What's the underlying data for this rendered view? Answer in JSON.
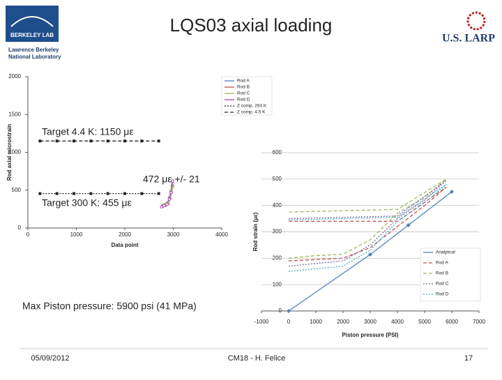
{
  "header": {
    "logo_left": "BERKELEY LAB",
    "logo_left_sub": [
      "Lawrence Berkeley",
      "National Laboratory"
    ],
    "title": "LQS03 axial loading",
    "logo_right": "U.S. LARP"
  },
  "chart_data": [
    {
      "type": "line",
      "ylabel": "Rod axial microstrain",
      "xlabel": "Data point",
      "xlim": [
        0,
        4000
      ],
      "xticks": [
        0,
        1000,
        2000,
        3000,
        4000
      ],
      "ylim": [
        0,
        2000
      ],
      "yticks": [
        0,
        500,
        1000,
        1500,
        2000
      ],
      "grid": false,
      "legend": "upper right",
      "series": [
        {
          "name": "Rod A",
          "color": "#4f81bd",
          "style": "solid",
          "marker": "circle",
          "x": [
            2780,
            2830,
            2880,
            2920,
            2950,
            2980
          ],
          "values": [
            300,
            310,
            330,
            400,
            480,
            560
          ]
        },
        {
          "name": "Rod B",
          "color": "#c0504d",
          "style": "solid",
          "marker": "circle",
          "x": [
            2790,
            2840,
            2890,
            2930,
            2960,
            2985
          ],
          "values": [
            290,
            300,
            320,
            390,
            470,
            550
          ]
        },
        {
          "name": "Rod C",
          "color": "#9bbb59",
          "style": "solid",
          "marker": "circle",
          "x": [
            2800,
            2850,
            2900,
            2935,
            2965,
            2990
          ],
          "values": [
            310,
            320,
            345,
            420,
            500,
            590
          ]
        },
        {
          "name": "Rod D",
          "color": "#b040c0",
          "style": "solid",
          "marker": "circle",
          "x": [
            2760,
            2810,
            2870,
            2920,
            2955,
            2985
          ],
          "values": [
            280,
            295,
            315,
            380,
            470,
            620
          ]
        },
        {
          "name": "Z comp. 293 K",
          "color": "#222222",
          "style": "dotted",
          "marker": "square",
          "x": [
            250,
            600,
            950,
            1300,
            1650,
            2000,
            2350,
            2700
          ],
          "values": [
            455,
            455,
            455,
            455,
            455,
            455,
            455,
            455
          ]
        },
        {
          "name": "Z comp. 4.5 K",
          "color": "#222222",
          "style": "dashed",
          "marker": "square",
          "x": [
            250,
            600,
            950,
            1300,
            1650,
            2000,
            2350,
            2700
          ],
          "values": [
            1150,
            1150,
            1150,
            1150,
            1150,
            1150,
            1150,
            1150
          ]
        }
      ],
      "annotations": [
        "Target 4.4 K: 1150 με",
        "472 με +/- 21",
        "Target 300 K: 455 με"
      ]
    },
    {
      "type": "line",
      "ylabel": "Rod strain (με)",
      "xlabel": "Piston pressure (PSI)",
      "xlim": [
        -1000,
        7000
      ],
      "xticks": [
        -1000,
        0,
        1000,
        2000,
        3000,
        4000,
        5000,
        6000,
        7000
      ],
      "ylim": [
        0,
        600
      ],
      "yticks": [
        0,
        100,
        200,
        300,
        400,
        500,
        600
      ],
      "grid": true,
      "legend": "lower right",
      "series": [
        {
          "name": "Analytical",
          "color": "#4f81bd",
          "style": "solid",
          "marker": "diamond",
          "x": [
            0,
            3000,
            4400,
            6000
          ],
          "values": [
            0,
            214,
            325,
            452
          ]
        },
        {
          "name": "Rod A",
          "color": "#c0504d",
          "style": "dashed",
          "marker": "none",
          "x": [
            0,
            1000,
            2000,
            3000,
            4000,
            5000,
            5800,
            4000,
            2000,
            0
          ],
          "values": [
            190,
            195,
            200,
            240,
            320,
            400,
            470,
            340,
            340,
            340
          ]
        },
        {
          "name": "Rod B",
          "color": "#9bbb59",
          "style": "dashed",
          "marker": "none",
          "x": [
            0,
            1000,
            2000,
            3000,
            4000,
            5000,
            5800,
            4000,
            2000,
            0
          ],
          "values": [
            200,
            210,
            215,
            270,
            370,
            430,
            500,
            385,
            380,
            375
          ]
        },
        {
          "name": "Rod C",
          "color": "#8064a2",
          "style": "dotted",
          "marker": "none",
          "x": [
            0,
            1000,
            2000,
            3000,
            4000,
            5000,
            5800,
            4000,
            2000,
            0
          ],
          "values": [
            170,
            180,
            190,
            250,
            350,
            420,
            495,
            360,
            355,
            350
          ]
        },
        {
          "name": "Rod D",
          "color": "#4bacc6",
          "style": "dotted",
          "marker": "none",
          "x": [
            0,
            1000,
            2000,
            3000,
            4000,
            5000,
            5800,
            4000,
            2000,
            0
          ],
          "values": [
            150,
            160,
            170,
            230,
            340,
            410,
            480,
            355,
            350,
            345
          ]
        }
      ],
      "annotations": [
        "Max Piston pressure: 5900 psi (41 MPa)"
      ]
    }
  ],
  "footer": {
    "date": "05/09/2012",
    "author": "CM18 - H. Felice",
    "page": "17"
  }
}
